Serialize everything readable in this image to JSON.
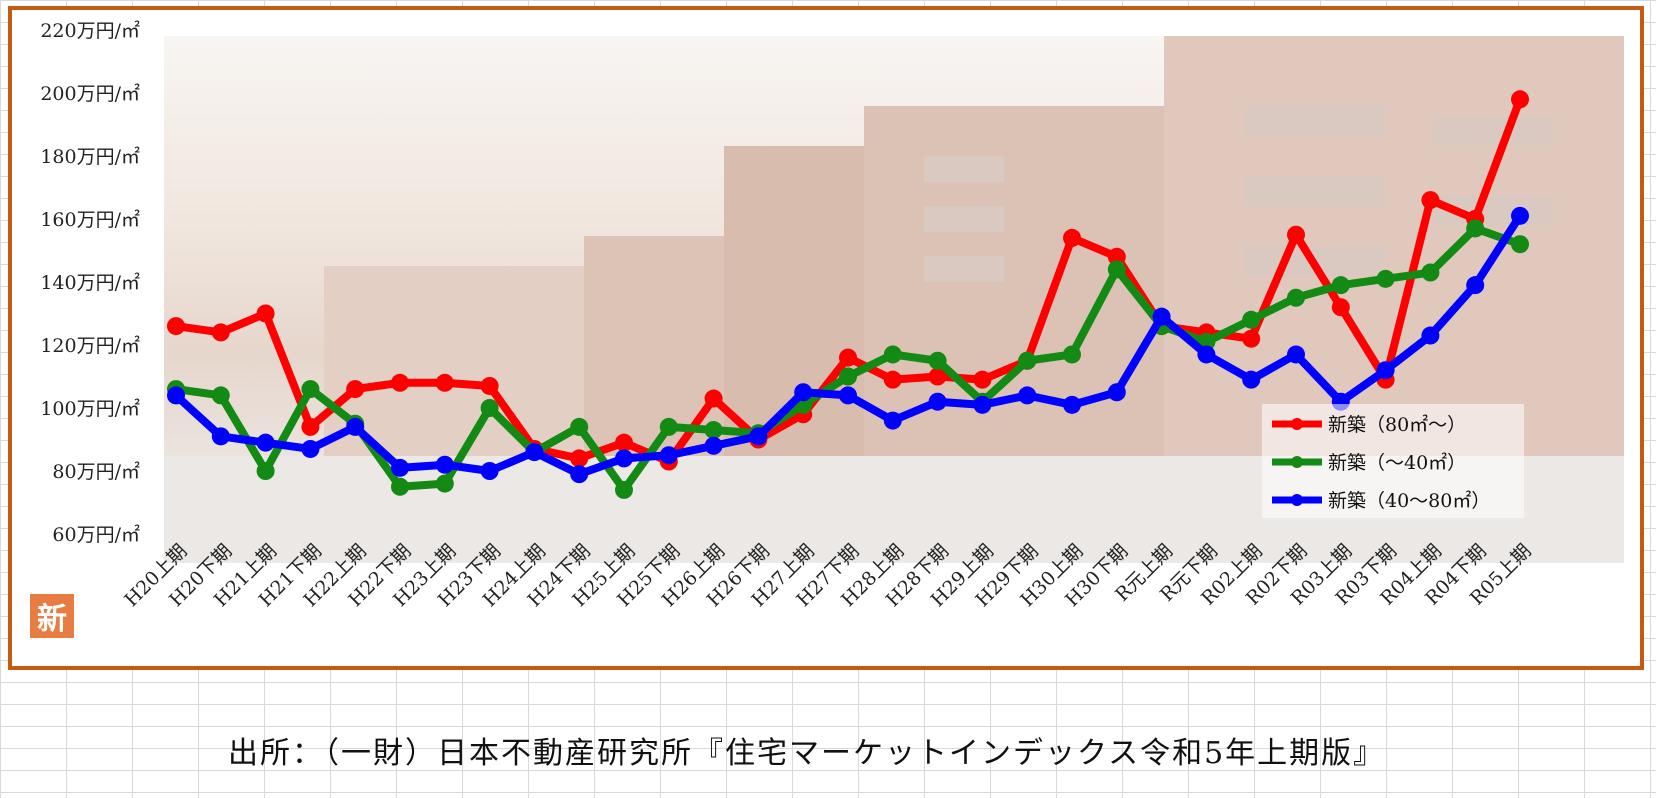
{
  "colors": {
    "frame": "#c55a11",
    "badge": "#e87d44"
  },
  "badge_text": "新",
  "source_text": "出所：（一財）日本不動産研究所『住宅マーケットインデックス令和5年上期版』",
  "chart_data": {
    "type": "line",
    "yunit": "万円/㎡",
    "ylim": [
      60,
      220
    ],
    "yticks": [
      "60万円/㎡",
      "80万円/㎡",
      "100万円/㎡",
      "120万円/㎡",
      "140万円/㎡",
      "160万円/㎡",
      "180万円/㎡",
      "200万円/㎡",
      "220万円/㎡"
    ],
    "ytick_values": [
      60,
      80,
      100,
      120,
      140,
      160,
      180,
      200,
      220
    ],
    "categories": [
      "H20上期",
      "H20下期",
      "H21上期",
      "H21下期",
      "H22上期",
      "H22下期",
      "H23上期",
      "H23下期",
      "H24上期",
      "H24下期",
      "H25上期",
      "H25下期",
      "H26上期",
      "H26下期",
      "H27上期",
      "H27下期",
      "H28上期",
      "H28下期",
      "H29上期",
      "H29下期",
      "H30上期",
      "H30下期",
      "R元上期",
      "R元下期",
      "R02上期",
      "R02下期",
      "R03上期",
      "R03下期",
      "R04上期",
      "R04下期",
      "R05上期"
    ],
    "legend_position": "bottom-right",
    "series": [
      {
        "name": "新築（80㎡～）",
        "color": "#ff0000",
        "values": [
          126,
          124,
          130,
          94,
          106,
          108,
          108,
          107,
          87,
          84,
          89,
          83,
          103,
          90,
          98,
          116,
          109,
          110,
          109,
          115,
          154,
          148,
          126,
          124,
          122,
          155,
          132,
          109,
          166,
          160,
          198
        ]
      },
      {
        "name": "新築（～40㎡）",
        "color": "#138a13",
        "values": [
          106,
          104,
          80,
          106,
          95,
          75,
          76,
          100,
          86,
          94,
          74,
          94,
          93,
          92,
          101,
          110,
          117,
          115,
          102,
          115,
          117,
          144,
          126,
          121,
          128,
          135,
          139,
          141,
          143,
          157,
          152
        ]
      },
      {
        "name": "新築（40～80㎡）",
        "color": "#0000ff",
        "values": [
          104,
          91,
          89,
          87,
          94,
          81,
          82,
          80,
          86,
          79,
          84,
          85,
          88,
          91,
          105,
          104,
          96,
          102,
          101,
          104,
          101,
          105,
          129,
          117,
          109,
          117,
          102,
          112,
          123,
          139,
          161
        ]
      }
    ]
  }
}
